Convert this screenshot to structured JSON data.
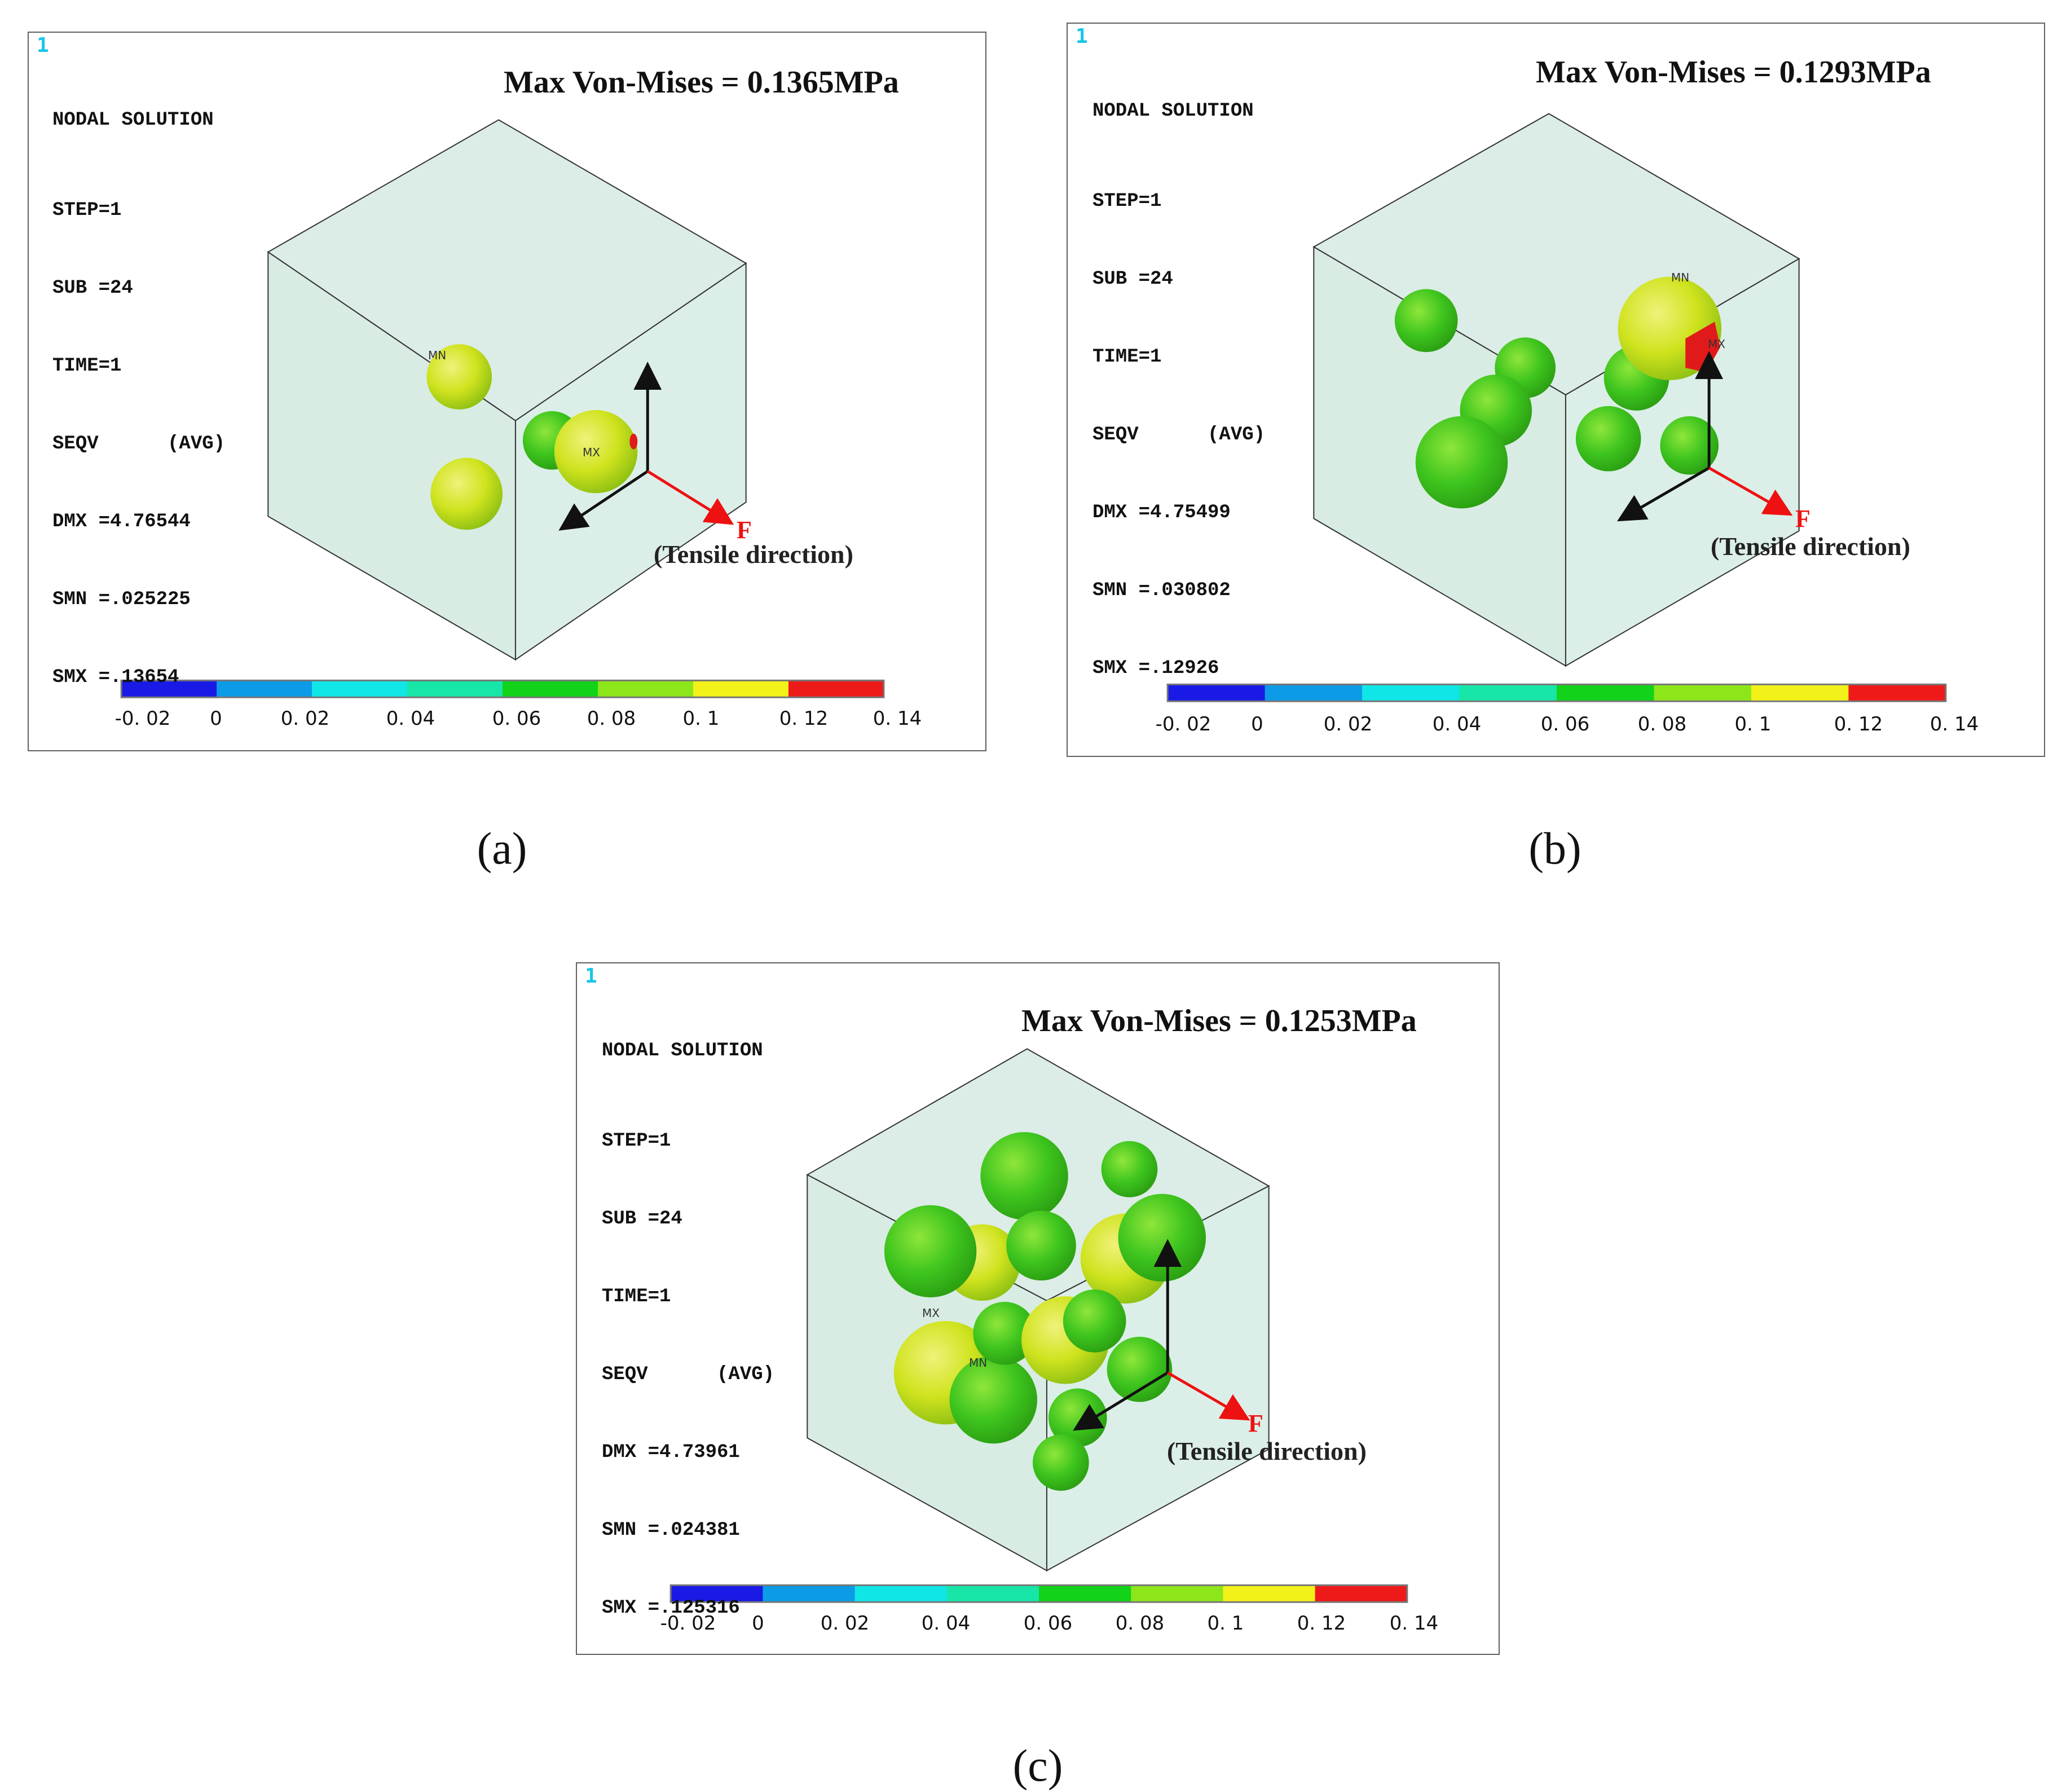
{
  "figure": {
    "panels": [
      {
        "id": "a",
        "caption": "(a)",
        "ansys_number": "1",
        "solution_title": "NODAL SOLUTION",
        "info_lines": [
          "STEP=1",
          "SUB =24",
          "TIME=1",
          "SEQV      (AVG)",
          "DMX =4.76544",
          "SMN =.025225",
          "SMX =.13654"
        ],
        "max_label": "Max Von-Mises = 0.1365MPa",
        "mn_label": "MN",
        "mx_label": "MX",
        "force_label": "F",
        "tensile_label": "(Tensile direction)",
        "colorbar_ticks": [
          "-0. 02",
          "0",
          "0. 02",
          "0. 04",
          "0. 06",
          "0. 08",
          "0. 1",
          "0. 12",
          "0. 14"
        ],
        "inclusion_count": 4,
        "max_stress_mpa": 0.1365
      },
      {
        "id": "b",
        "caption": "(b)",
        "ansys_number": "1",
        "solution_title": "NODAL SOLUTION",
        "info_lines": [
          "STEP=1",
          "SUB =24",
          "TIME=1",
          "SEQV      (AVG)",
          "DMX =4.75499",
          "SMN =.030802",
          "SMX =.12926"
        ],
        "max_label": "Max Von-Mises = 0.1293MPa",
        "mn_label": "MN",
        "mx_label": "MX",
        "force_label": "F",
        "tensile_label": "(Tensile direction)",
        "colorbar_ticks": [
          "-0. 02",
          "0",
          "0. 02",
          "0. 04",
          "0. 06",
          "0. 08",
          "0. 1",
          "0. 12",
          "0. 14"
        ],
        "inclusion_count": 8,
        "max_stress_mpa": 0.1293
      },
      {
        "id": "c",
        "caption": "(c)",
        "ansys_number": "1",
        "solution_title": "NODAL SOLUTION",
        "info_lines": [
          "STEP=1",
          "SUB =24",
          "TIME=1",
          "SEQV      (AVG)",
          "DMX =4.73961",
          "SMN =.024381",
          "SMX =.125316"
        ],
        "max_label": "Max Von-Mises = 0.1253MPa",
        "mn_label": "MN",
        "mx_label": "MX",
        "force_label": "F",
        "tensile_label": "(Tensile direction)",
        "colorbar_ticks": [
          "-0. 02",
          "0",
          "0. 02",
          "0. 04",
          "0. 06",
          "0. 08",
          "0. 1",
          "0. 12",
          "0. 14"
        ],
        "inclusion_count": 14,
        "max_stress_mpa": 0.1253
      }
    ],
    "colorbar_colors": [
      "#1a1ae6",
      "#0c9be6",
      "#10e6e6",
      "#17e6a8",
      "#12d21a",
      "#8ce61a",
      "#f2f21a",
      "#ee1a1a"
    ],
    "colors": {
      "matrix_face": "#dcece6",
      "inclusion_green": "#3ec51e",
      "inclusion_yellow": "#c9e01e",
      "hotspot": "#e01a1a",
      "axis": "#111111",
      "force_arrow": "#ee1111"
    }
  }
}
